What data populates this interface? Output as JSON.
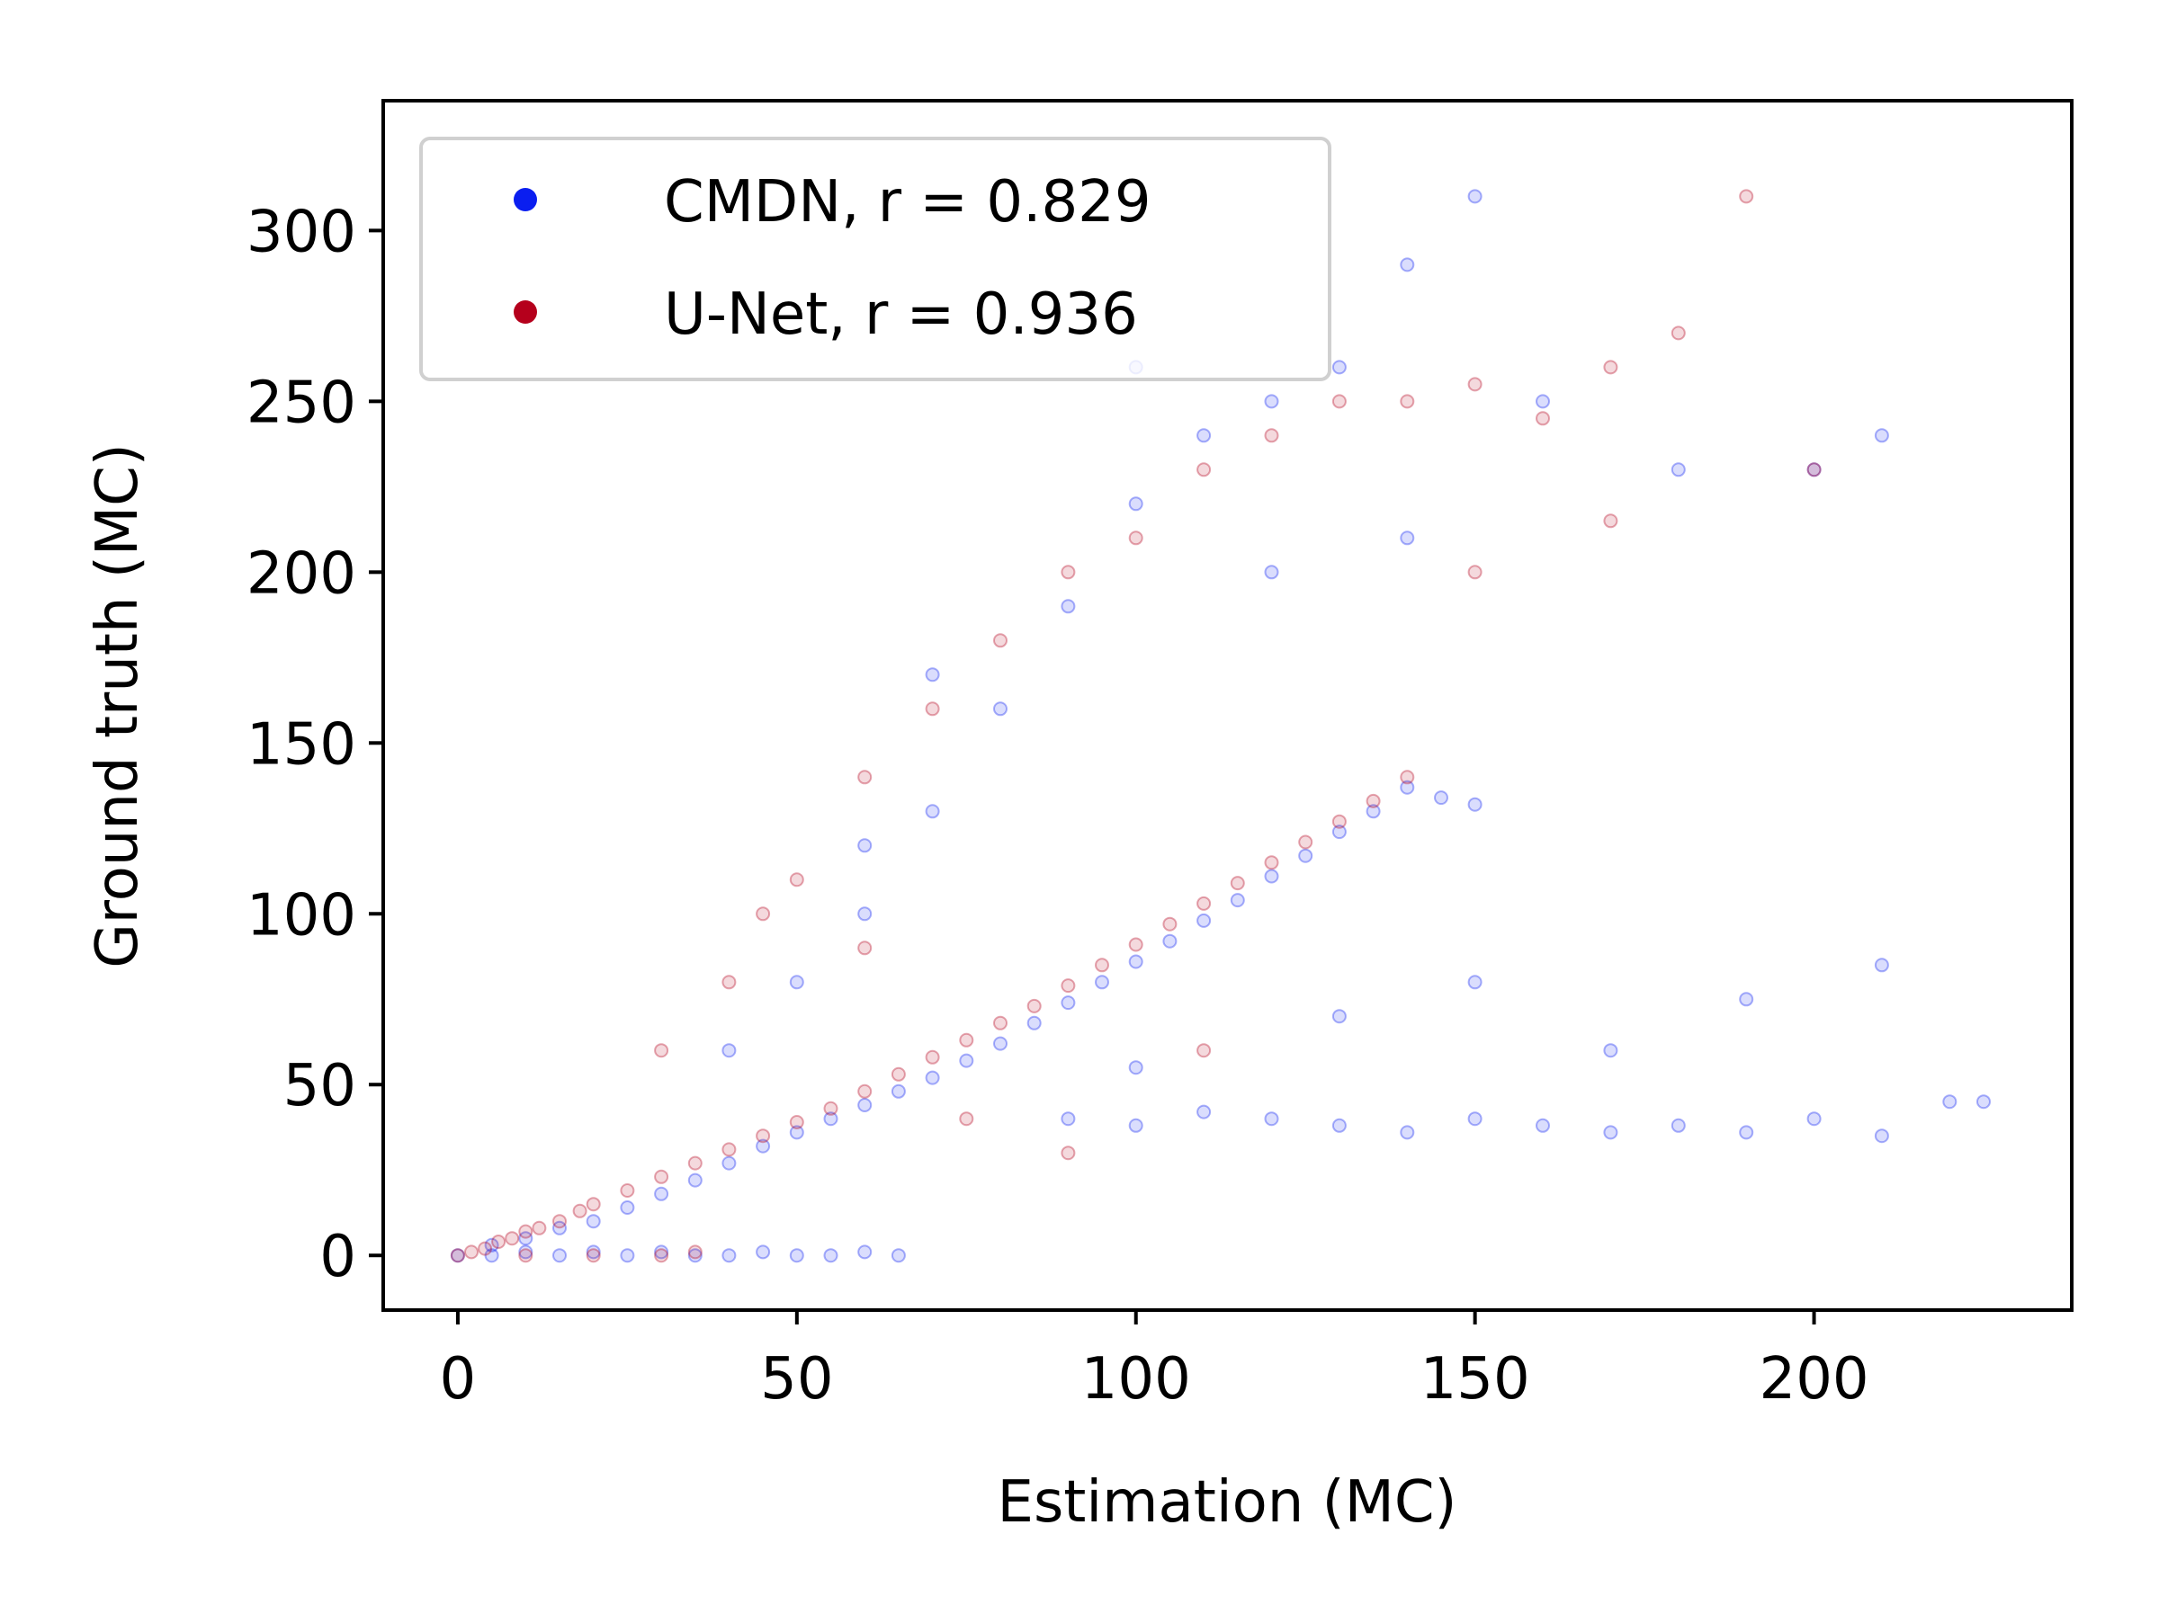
{
  "chart_data": {
    "type": "scatter",
    "title": "",
    "xlabel": "Estimation (MC)",
    "ylabel": "Ground truth (MC)",
    "xlim": [
      -11,
      238
    ],
    "ylim": [
      -16,
      338
    ],
    "xticks": [
      0,
      50,
      100,
      150,
      200
    ],
    "yticks": [
      0,
      50,
      100,
      150,
      200,
      250,
      300
    ],
    "grid": false,
    "legend_position": "top-left",
    "series": [
      {
        "name": "CMDN, r = 0.829",
        "color": "#0a1ef0",
        "marker": "hollow circle, low alpha",
        "points": [
          [
            0,
            0
          ],
          [
            5,
            0
          ],
          [
            10,
            1
          ],
          [
            15,
            0
          ],
          [
            20,
            1
          ],
          [
            25,
            0
          ],
          [
            30,
            1
          ],
          [
            35,
            0
          ],
          [
            40,
            0
          ],
          [
            45,
            1
          ],
          [
            50,
            0
          ],
          [
            55,
            0
          ],
          [
            60,
            1
          ],
          [
            65,
            0
          ],
          [
            5,
            3
          ],
          [
            10,
            5
          ],
          [
            15,
            8
          ],
          [
            20,
            10
          ],
          [
            25,
            14
          ],
          [
            30,
            18
          ],
          [
            35,
            22
          ],
          [
            40,
            27
          ],
          [
            45,
            32
          ],
          [
            50,
            36
          ],
          [
            55,
            40
          ],
          [
            60,
            44
          ],
          [
            65,
            48
          ],
          [
            70,
            52
          ],
          [
            75,
            57
          ],
          [
            80,
            62
          ],
          [
            85,
            68
          ],
          [
            90,
            74
          ],
          [
            95,
            80
          ],
          [
            100,
            86
          ],
          [
            105,
            92
          ],
          [
            110,
            98
          ],
          [
            115,
            104
          ],
          [
            120,
            111
          ],
          [
            125,
            117
          ],
          [
            130,
            124
          ],
          [
            135,
            130
          ],
          [
            140,
            137
          ],
          [
            145,
            134
          ],
          [
            150,
            132
          ],
          [
            90,
            40
          ],
          [
            100,
            38
          ],
          [
            110,
            42
          ],
          [
            120,
            40
          ],
          [
            130,
            38
          ],
          [
            140,
            36
          ],
          [
            150,
            40
          ],
          [
            160,
            38
          ],
          [
            170,
            36
          ],
          [
            180,
            38
          ],
          [
            190,
            36
          ],
          [
            200,
            40
          ],
          [
            210,
            35
          ],
          [
            220,
            45
          ],
          [
            225,
            45
          ],
          [
            100,
            55
          ],
          [
            130,
            70
          ],
          [
            150,
            80
          ],
          [
            170,
            60
          ],
          [
            190,
            75
          ],
          [
            210,
            85
          ],
          [
            60,
            100
          ],
          [
            70,
            130
          ],
          [
            80,
            160
          ],
          [
            90,
            190
          ],
          [
            100,
            220
          ],
          [
            110,
            240
          ],
          [
            120,
            250
          ],
          [
            130,
            260
          ],
          [
            140,
            290
          ],
          [
            150,
            310
          ],
          [
            160,
            250
          ],
          [
            180,
            230
          ],
          [
            200,
            230
          ],
          [
            210,
            240
          ],
          [
            40,
            60
          ],
          [
            50,
            80
          ],
          [
            60,
            120
          ],
          [
            70,
            170
          ],
          [
            100,
            260
          ],
          [
            120,
            200
          ],
          [
            140,
            210
          ]
        ]
      },
      {
        "name": "U-Net, r = 0.936",
        "color": "#b5001c",
        "marker": "hollow circle, low alpha",
        "points": [
          [
            0,
            0
          ],
          [
            2,
            1
          ],
          [
            4,
            2
          ],
          [
            6,
            4
          ],
          [
            8,
            5
          ],
          [
            10,
            7
          ],
          [
            12,
            8
          ],
          [
            15,
            10
          ],
          [
            18,
            13
          ],
          [
            20,
            15
          ],
          [
            25,
            19
          ],
          [
            30,
            23
          ],
          [
            35,
            27
          ],
          [
            40,
            31
          ],
          [
            45,
            35
          ],
          [
            50,
            39
          ],
          [
            55,
            43
          ],
          [
            60,
            48
          ],
          [
            65,
            53
          ],
          [
            70,
            58
          ],
          [
            75,
            63
          ],
          [
            80,
            68
          ],
          [
            85,
            73
          ],
          [
            90,
            79
          ],
          [
            95,
            85
          ],
          [
            100,
            91
          ],
          [
            105,
            97
          ],
          [
            110,
            103
          ],
          [
            115,
            109
          ],
          [
            120,
            115
          ],
          [
            125,
            121
          ],
          [
            130,
            127
          ],
          [
            135,
            133
          ],
          [
            140,
            140
          ],
          [
            10,
            0
          ],
          [
            20,
            0
          ],
          [
            30,
            0
          ],
          [
            35,
            1
          ],
          [
            40,
            80
          ],
          [
            50,
            110
          ],
          [
            60,
            140
          ],
          [
            70,
            160
          ],
          [
            80,
            180
          ],
          [
            90,
            200
          ],
          [
            100,
            210
          ],
          [
            110,
            230
          ],
          [
            120,
            240
          ],
          [
            130,
            250
          ],
          [
            140,
            250
          ],
          [
            150,
            255
          ],
          [
            160,
            245
          ],
          [
            170,
            260
          ],
          [
            180,
            270
          ],
          [
            190,
            310
          ],
          [
            200,
            230
          ],
          [
            30,
            60
          ],
          [
            45,
            100
          ],
          [
            60,
            90
          ],
          [
            75,
            40
          ],
          [
            90,
            30
          ],
          [
            110,
            60
          ],
          [
            150,
            200
          ],
          [
            170,
            215
          ]
        ]
      }
    ]
  }
}
